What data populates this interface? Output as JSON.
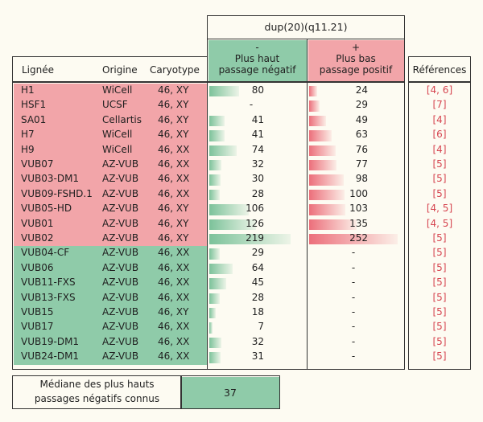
{
  "dup_header": "dup(20)(q11.21)",
  "columns": {
    "lignee": "Lignée",
    "origine": "Origine",
    "caryotype": "Caryotype",
    "neg_sign": "-",
    "neg_line1": "Plus haut",
    "neg_line2": "passage négatif",
    "pos_sign": "+",
    "pos_line1": "Plus bas",
    "pos_line2": "passage positif",
    "references": "Références"
  },
  "rows": [
    {
      "lignee": "H1",
      "origine": "WiCell",
      "caryotype": "46, XY",
      "neg": "80",
      "neg_v": 80,
      "pos": "24",
      "pos_v": 24,
      "ref": "[4, 6]",
      "group": "pink"
    },
    {
      "lignee": "HSF1",
      "origine": "UCSF",
      "caryotype": "46, XY",
      "neg": "-",
      "neg_v": 0,
      "pos": "29",
      "pos_v": 29,
      "ref": "[7]",
      "group": "pink"
    },
    {
      "lignee": "SA01",
      "origine": "Cellartis",
      "caryotype": "46, XY",
      "neg": "41",
      "neg_v": 41,
      "pos": "49",
      "pos_v": 49,
      "ref": "[4]",
      "group": "pink"
    },
    {
      "lignee": "H7",
      "origine": "WiCell",
      "caryotype": "46, XY",
      "neg": "41",
      "neg_v": 41,
      "pos": "63",
      "pos_v": 63,
      "ref": "[6]",
      "group": "pink"
    },
    {
      "lignee": "H9",
      "origine": "WiCell",
      "caryotype": "46, XX",
      "neg": "74",
      "neg_v": 74,
      "pos": "76",
      "pos_v": 76,
      "ref": "[4]",
      "group": "pink"
    },
    {
      "lignee": "VUB07",
      "origine": "AZ-VUB",
      "caryotype": "46, XX",
      "neg": "32",
      "neg_v": 32,
      "pos": "77",
      "pos_v": 77,
      "ref": "[5]",
      "group": "pink"
    },
    {
      "lignee": "VUB03-DM1",
      "origine": "AZ-VUB",
      "caryotype": "46, XX",
      "neg": "30",
      "neg_v": 30,
      "pos": "98",
      "pos_v": 98,
      "ref": "[5]",
      "group": "pink"
    },
    {
      "lignee": "VUB09-FSHD.1",
      "origine": "AZ-VUB",
      "caryotype": "46, XX",
      "neg": "28",
      "neg_v": 28,
      "pos": "100",
      "pos_v": 100,
      "ref": "[5]",
      "group": "pink"
    },
    {
      "lignee": "VUB05-HD",
      "origine": "AZ-VUB",
      "caryotype": "46, XY",
      "neg": "106",
      "neg_v": 106,
      "pos": "103",
      "pos_v": 103,
      "ref": "[4, 5]",
      "group": "pink"
    },
    {
      "lignee": "VUB01",
      "origine": "AZ-VUB",
      "caryotype": "46, XY",
      "neg": "126",
      "neg_v": 126,
      "pos": "135",
      "pos_v": 135,
      "ref": "[4, 5]",
      "group": "pink"
    },
    {
      "lignee": "VUB02",
      "origine": "AZ-VUB",
      "caryotype": "46, XY",
      "neg": "219",
      "neg_v": 219,
      "pos": "252",
      "pos_v": 252,
      "ref": "[5]",
      "group": "pink"
    },
    {
      "lignee": "VUB04-CF",
      "origine": "AZ-VUB",
      "caryotype": "46, XX",
      "neg": "29",
      "neg_v": 29,
      "pos": "-",
      "pos_v": 0,
      "ref": "[5]",
      "group": "green"
    },
    {
      "lignee": "VUB06",
      "origine": "AZ-VUB",
      "caryotype": "46, XX",
      "neg": "64",
      "neg_v": 64,
      "pos": "-",
      "pos_v": 0,
      "ref": "[5]",
      "group": "green"
    },
    {
      "lignee": "VUB11-FXS",
      "origine": "AZ-VUB",
      "caryotype": "46, XX",
      "neg": "45",
      "neg_v": 45,
      "pos": "-",
      "pos_v": 0,
      "ref": "[5]",
      "group": "green"
    },
    {
      "lignee": "VUB13-FXS",
      "origine": "AZ-VUB",
      "caryotype": "46, XX",
      "neg": "28",
      "neg_v": 28,
      "pos": "-",
      "pos_v": 0,
      "ref": "[5]",
      "group": "green"
    },
    {
      "lignee": "VUB15",
      "origine": "AZ-VUB",
      "caryotype": "46, XY",
      "neg": "18",
      "neg_v": 18,
      "pos": "-",
      "pos_v": 0,
      "ref": "[5]",
      "group": "green"
    },
    {
      "lignee": "VUB17",
      "origine": "AZ-VUB",
      "caryotype": "46, XX",
      "neg": "7",
      "neg_v": 7,
      "pos": "-",
      "pos_v": 0,
      "ref": "[5]",
      "group": "green"
    },
    {
      "lignee": "VUB19-DM1",
      "origine": "AZ-VUB",
      "caryotype": "46, XX",
      "neg": "32",
      "neg_v": 32,
      "pos": "-",
      "pos_v": 0,
      "ref": "[5]",
      "group": "green"
    },
    {
      "lignee": "VUB24-DM1",
      "origine": "AZ-VUB",
      "caryotype": "46, XX",
      "neg": "31",
      "neg_v": 31,
      "pos": "-",
      "pos_v": 0,
      "ref": "[5]",
      "group": "green"
    }
  ],
  "mediane": {
    "label_line1": "Médiane des plus hauts",
    "label_line2": "passages négatifs connus",
    "value": "37"
  },
  "colors": {
    "pink": "#f2a5a9",
    "green": "#8fcba9",
    "neg_bar": "#7cc29a",
    "pos_bar": "#ec6f7b",
    "ref_text": "#d64550"
  },
  "bar_max": 252
}
